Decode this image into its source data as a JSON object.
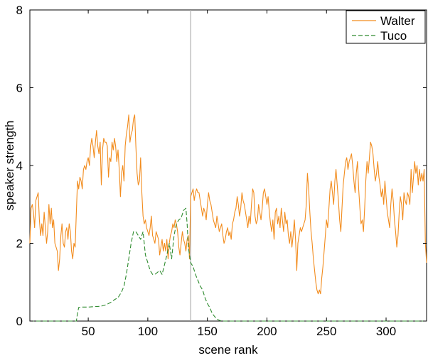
{
  "chart_data": {
    "type": "line",
    "xlabel": "scene rank",
    "ylabel": "speaker strength",
    "xlim": [
      1,
      334
    ],
    "ylim": [
      0,
      8
    ],
    "xticks": [
      50,
      100,
      150,
      200,
      250,
      300
    ],
    "yticks": [
      0,
      2,
      4,
      6,
      8
    ],
    "grid": false,
    "legend_position": "top-right",
    "vertical_marker_x": 136,
    "series": [
      {
        "name": "Walter",
        "color": "#f28c1e",
        "style": "solid",
        "x": [
          1,
          2,
          3,
          4,
          5,
          6,
          7,
          8,
          9,
          10,
          11,
          12,
          13,
          14,
          15,
          16,
          17,
          18,
          19,
          20,
          21,
          22,
          23,
          24,
          25,
          26,
          27,
          28,
          29,
          30,
          31,
          32,
          33,
          34,
          35,
          36,
          37,
          38,
          39,
          40,
          41,
          42,
          43,
          44,
          45,
          46,
          47,
          48,
          49,
          50,
          51,
          52,
          53,
          54,
          55,
          56,
          57,
          58,
          59,
          60,
          61,
          62,
          63,
          64,
          65,
          66,
          67,
          68,
          69,
          70,
          71,
          72,
          73,
          74,
          75,
          76,
          77,
          78,
          79,
          80,
          81,
          82,
          83,
          84,
          85,
          86,
          87,
          88,
          89,
          90,
          91,
          92,
          93,
          94,
          95,
          96,
          97,
          98,
          99,
          100,
          101,
          102,
          103,
          104,
          105,
          106,
          107,
          108,
          109,
          110,
          111,
          112,
          113,
          114,
          115,
          116,
          117,
          118,
          119,
          120,
          121,
          122,
          123,
          124,
          125,
          126,
          127,
          128,
          129,
          130,
          131,
          132,
          133,
          134,
          135,
          136,
          137,
          138,
          139,
          140,
          141,
          142,
          143,
          144,
          145,
          146,
          147,
          148,
          149,
          150,
          151,
          152,
          153,
          154,
          155,
          156,
          157,
          158,
          159,
          160,
          161,
          162,
          163,
          164,
          165,
          166,
          167,
          168,
          169,
          170,
          171,
          172,
          173,
          174,
          175,
          176,
          177,
          178,
          179,
          180,
          181,
          182,
          183,
          184,
          185,
          186,
          187,
          188,
          189,
          190,
          191,
          192,
          193,
          194,
          195,
          196,
          197,
          198,
          199,
          200,
          201,
          202,
          203,
          204,
          205,
          206,
          207,
          208,
          209,
          210,
          211,
          212,
          213,
          214,
          215,
          216,
          217,
          218,
          219,
          220,
          221,
          222,
          223,
          224,
          225,
          226,
          227,
          228,
          229,
          230,
          231,
          232,
          233,
          234,
          235,
          236,
          237,
          238,
          239,
          240,
          241,
          242,
          243,
          244,
          245,
          246,
          247,
          248,
          249,
          250,
          251,
          252,
          253,
          254,
          255,
          256,
          257,
          258,
          259,
          260,
          261,
          262,
          263,
          264,
          265,
          266,
          267,
          268,
          269,
          270,
          271,
          272,
          273,
          274,
          275,
          276,
          277,
          278,
          279,
          280,
          281,
          282,
          283,
          284,
          285,
          286,
          287,
          288,
          289,
          290,
          291,
          292,
          293,
          294,
          295,
          296,
          297,
          298,
          299,
          300,
          301,
          302,
          303,
          304,
          305,
          306,
          307,
          308,
          309,
          310,
          311,
          312,
          313,
          314,
          315,
          316,
          317,
          318,
          319,
          320,
          321,
          322,
          323,
          324,
          325,
          326,
          327,
          328,
          329,
          330,
          331,
          332,
          333,
          334
        ],
        "y": [
          2.0,
          2.9,
          3.0,
          2.8,
          2.4,
          3.1,
          3.2,
          3.3,
          2.6,
          2.2,
          2.5,
          2.2,
          2.8,
          2.4,
          2.0,
          2.3,
          3.0,
          2.5,
          2.9,
          2.4,
          2.6,
          2.0,
          1.9,
          1.8,
          1.3,
          1.6,
          2.2,
          2.5,
          2.0,
          1.9,
          2.3,
          2.4,
          2.1,
          2.5,
          2.3,
          1.8,
          1.6,
          2.0,
          1.9,
          2.8,
          3.6,
          3.4,
          3.7,
          3.6,
          3.4,
          3.9,
          4.0,
          3.9,
          4.1,
          4.2,
          4.0,
          4.5,
          4.7,
          4.5,
          4.2,
          4.6,
          4.9,
          4.5,
          4.3,
          4.6,
          3.5,
          4.4,
          4.7,
          4.6,
          4.6,
          4.5,
          3.7,
          4.2,
          4.1,
          4.6,
          4.4,
          4.7,
          4.5,
          4.1,
          4.4,
          3.9,
          3.2,
          3.8,
          4.0,
          3.6,
          4.5,
          4.8,
          5.0,
          5.3,
          4.6,
          4.8,
          4.9,
          5.2,
          5.3,
          4.5,
          3.8,
          3.5,
          3.6,
          4.2,
          3.3,
          2.7,
          2.5,
          2.6,
          2.4,
          2.3,
          2.2,
          2.4,
          2.7,
          2.2,
          2.1,
          2.0,
          2.3,
          2.2,
          2.1,
          1.7,
          1.9,
          2.1,
          1.8,
          2.0,
          1.8,
          2.1,
          1.6,
          2.0,
          2.2,
          2.3,
          2.5,
          2.4,
          2.6,
          2.5,
          2.3,
          1.9,
          1.7,
          2.0,
          2.3,
          2.1,
          2.0,
          1.8,
          2.1,
          2.2,
          1.6,
          3.2,
          3.3,
          3.4,
          3.1,
          3.3,
          3.4,
          3.3,
          3.3,
          3.1,
          2.9,
          2.7,
          2.9,
          2.8,
          2.6,
          3.0,
          3.3,
          3.1,
          3.0,
          2.8,
          2.6,
          2.5,
          2.4,
          2.7,
          2.5,
          2.3,
          2.4,
          2.5,
          2.2,
          2.0,
          2.1,
          2.3,
          2.4,
          2.2,
          2.3,
          2.1,
          2.5,
          2.6,
          2.8,
          2.9,
          3.2,
          3.0,
          2.7,
          2.9,
          3.3,
          3.1,
          3.0,
          2.8,
          2.6,
          2.4,
          2.7,
          2.5,
          3.0,
          3.4,
          3.3,
          2.7,
          2.5,
          2.6,
          3.0,
          2.8,
          2.6,
          2.9,
          3.3,
          3.4,
          3.2,
          3.0,
          3.2,
          2.8,
          2.5,
          2.3,
          2.6,
          2.1,
          2.8,
          2.9,
          2.5,
          2.7,
          2.4,
          2.9,
          2.6,
          2.3,
          2.8,
          2.5,
          2.6,
          2.2,
          2.0,
          2.3,
          1.9,
          2.2,
          2.6,
          2.1,
          1.3,
          2.0,
          2.2,
          2.4,
          2.3,
          2.4,
          2.5,
          2.6,
          3.0,
          3.8,
          3.4,
          2.8,
          2.3,
          2.0,
          1.6,
          1.3,
          1.0,
          0.8,
          0.7,
          0.8,
          0.7,
          1.1,
          1.4,
          1.8,
          2.2,
          2.6,
          2.4,
          2.9,
          3.4,
          3.6,
          3.3,
          3.0,
          3.6,
          3.9,
          3.5,
          3.1,
          2.6,
          2.3,
          2.9,
          3.5,
          3.8,
          4.1,
          4.2,
          3.9,
          4.1,
          4.2,
          4.3,
          4.0,
          3.6,
          3.3,
          3.8,
          4.1,
          3.4,
          2.9,
          2.5,
          2.6,
          2.3,
          2.9,
          3.6,
          4.1,
          3.8,
          4.2,
          4.6,
          4.5,
          4.3,
          3.9,
          3.6,
          3.8,
          4.1,
          3.7,
          3.5,
          3.2,
          3.4,
          3.0,
          3.6,
          3.2,
          2.8,
          2.6,
          2.4,
          3.0,
          3.4,
          3.1,
          2.6,
          2.3,
          1.9,
          2.2,
          2.8,
          3.2,
          3.0,
          2.6,
          3.3,
          3.1,
          3.0,
          3.3,
          3.2,
          3.0,
          3.9,
          3.3,
          3.7,
          4.1,
          3.8,
          4.0,
          3.5,
          3.9,
          3.6,
          3.8,
          3.6,
          3.9,
          2.0,
          1.5
        ]
      },
      {
        "name": "Tuco",
        "color": "#2e8b2e",
        "style": "dashed",
        "x": [
          1,
          40,
          41,
          42,
          45,
          50,
          55,
          60,
          63,
          65,
          67,
          70,
          72,
          75,
          78,
          80,
          82,
          84,
          86,
          88,
          90,
          92,
          94,
          96,
          97,
          98,
          100,
          102,
          104,
          106,
          108,
          110,
          112,
          114,
          116,
          118,
          120,
          122,
          124,
          126,
          128,
          130,
          132,
          133,
          134,
          136,
          138,
          140,
          142,
          144,
          146,
          148,
          150,
          152,
          154,
          156,
          158,
          160,
          162,
          334
        ],
        "y": [
          0.0,
          0.0,
          0.2,
          0.35,
          0.36,
          0.36,
          0.37,
          0.38,
          0.4,
          0.42,
          0.45,
          0.5,
          0.55,
          0.6,
          0.75,
          0.9,
          1.2,
          1.6,
          2.0,
          2.3,
          2.3,
          2.2,
          2.1,
          2.3,
          2.0,
          1.7,
          1.5,
          1.3,
          1.2,
          1.2,
          1.25,
          1.3,
          1.2,
          1.45,
          1.7,
          2.0,
          1.6,
          2.2,
          2.5,
          2.6,
          2.65,
          2.85,
          2.9,
          2.5,
          1.9,
          1.5,
          1.4,
          1.2,
          1.05,
          0.9,
          0.8,
          0.6,
          0.45,
          0.35,
          0.2,
          0.12,
          0.05,
          0.02,
          0.0,
          0.0
        ]
      }
    ]
  }
}
